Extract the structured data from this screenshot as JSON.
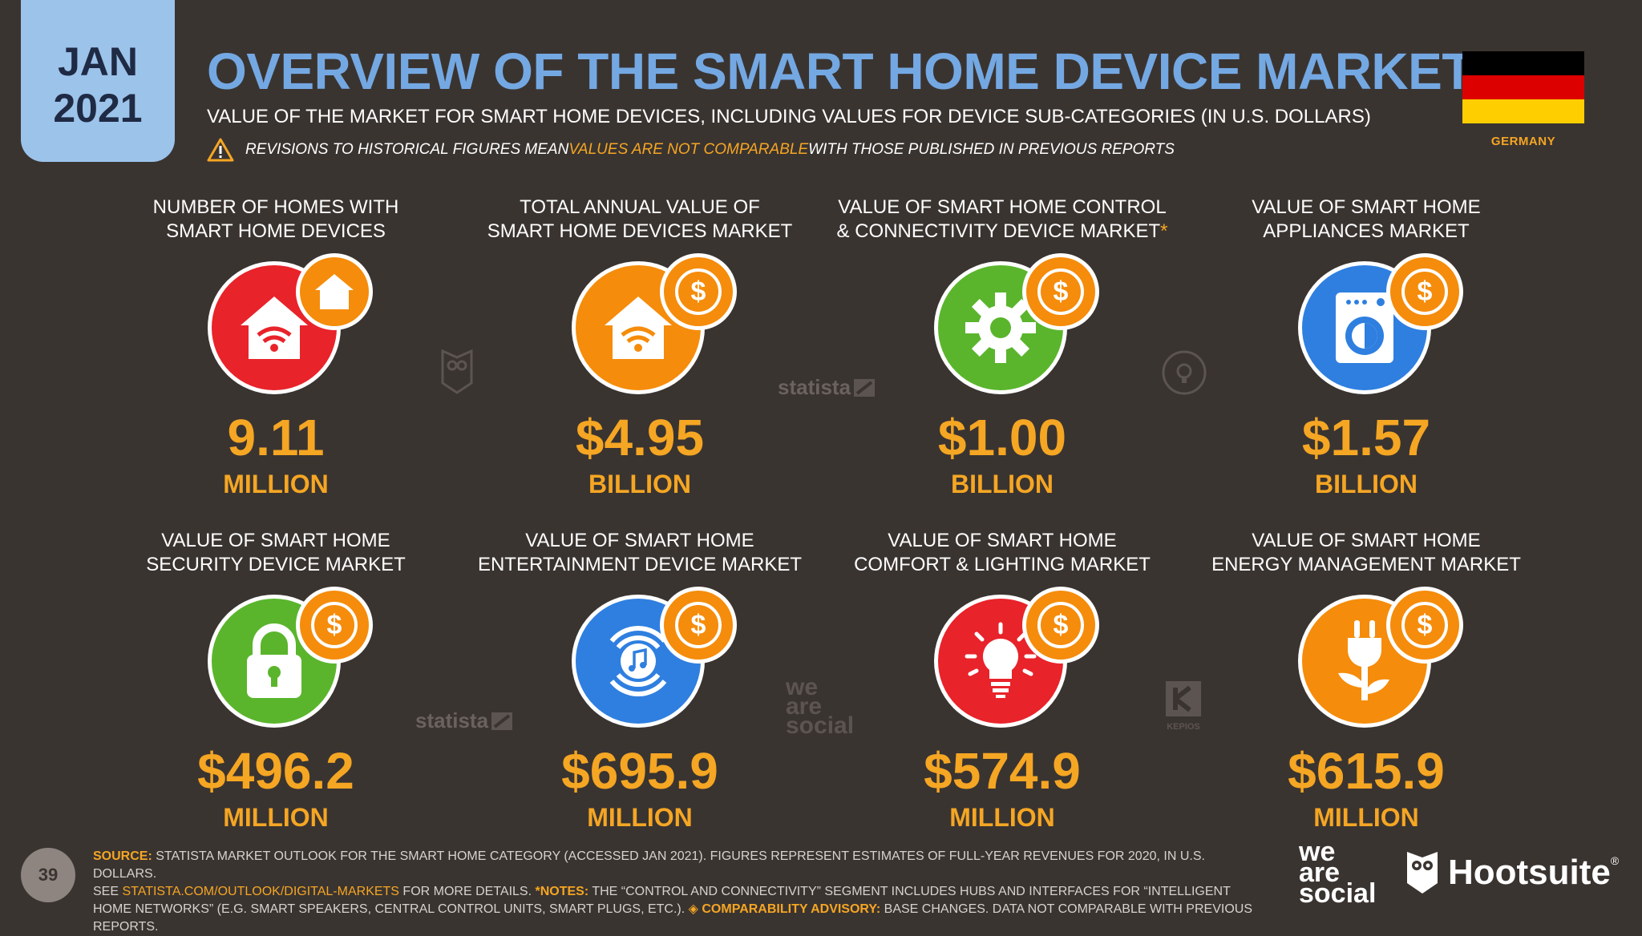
{
  "header": {
    "month": "JAN",
    "year": "2021",
    "title": "OVERVIEW OF THE SMART HOME DEVICE MARKET",
    "subtitle": "VALUE OF THE MARKET FOR SMART HOME DEVICES, INCLUDING VALUES FOR DEVICE SUB-CATEGORIES (IN U.S. DOLLARS)",
    "warning_pre": "REVISIONS TO HISTORICAL FIGURES MEAN ",
    "warning_highlight": "VALUES ARE NOT COMPARABLE",
    "warning_post": " WITH THOSE PUBLISHED IN PREVIOUS REPORTS",
    "country": "GERMANY"
  },
  "flag_colors": [
    "#000000",
    "#dd0000",
    "#ffce00"
  ],
  "cards": [
    {
      "label_line1": "NUMBER OF HOMES WITH",
      "label_line2": "SMART HOME DEVICES",
      "value": "9.11",
      "unit": "MILLION",
      "icon": "house-wifi-icon",
      "color": "#e8232a"
    },
    {
      "label_line1": "TOTAL ANNUAL VALUE OF",
      "label_line2": "SMART HOME DEVICES MARKET",
      "value": "$4.95",
      "unit": "BILLION",
      "icon": "house-wifi-icon",
      "color": "#f58c0b"
    },
    {
      "label_line1": "VALUE OF SMART HOME CONTROL",
      "label_line2": "& CONNECTIVITY DEVICE MARKET",
      "label_asterisk": "*",
      "value": "$1.00",
      "unit": "BILLION",
      "icon": "gear-icon",
      "color": "#5ab52c"
    },
    {
      "label_line1": "VALUE OF SMART HOME",
      "label_line2": "APPLIANCES MARKET",
      "value": "$1.57",
      "unit": "BILLION",
      "icon": "washing-machine-icon",
      "color": "#2f7fe0"
    },
    {
      "label_line1": "VALUE OF SMART HOME",
      "label_line2": "SECURITY DEVICE MARKET",
      "value": "$496.2",
      "unit": "MILLION",
      "icon": "padlock-icon",
      "color": "#5ab52c"
    },
    {
      "label_line1": "VALUE OF SMART HOME",
      "label_line2": "ENTERTAINMENT DEVICE MARKET",
      "value": "$695.9",
      "unit": "MILLION",
      "icon": "music-speaker-icon",
      "color": "#2f7fe0"
    },
    {
      "label_line1": "VALUE OF SMART HOME",
      "label_line2": "COMFORT & LIGHTING MARKET",
      "value": "$574.9",
      "unit": "MILLION",
      "icon": "lightbulb-icon",
      "color": "#e8232a"
    },
    {
      "label_line1": "VALUE OF SMART HOME",
      "label_line2": "ENERGY MANAGEMENT MARKET",
      "value": "$615.9",
      "unit": "MILLION",
      "icon": "plug-icon",
      "color": "#f58c0b"
    }
  ],
  "badge_symbol": "$",
  "watermarks": {
    "statista": "statista",
    "was_line1": "we",
    "was_line2": "are",
    "was_line3": "social",
    "kepios": "KEPIOS"
  },
  "footer": {
    "page_number": "39",
    "source_key": "SOURCE:",
    "source_text": " STATISTA MARKET OUTLOOK FOR THE SMART HOME CATEGORY (ACCESSED JAN 2021). FIGURES REPRESENT ESTIMATES OF FULL-YEAR REVENUES FOR 2020, IN U.S. DOLLARS.",
    "see_text": "SEE ",
    "link_text": "STATISTA.COM/OUTLOOK/DIGITAL-MARKETS",
    "more_text": " FOR MORE DETAILS. ",
    "notes_key": "*NOTES:",
    "notes_text": " THE “CONTROL AND CONNECTIVITY” SEGMENT INCLUDES HUBS AND INTERFACES FOR “INTELLIGENT HOME NETWORKS” (E.G. SMART SPEAKERS, CENTRAL CONTROL UNITS, SMART PLUGS, ETC.). ",
    "advisory_key": "◈ COMPARABILITY ADVISORY:",
    "advisory_text": " BASE CHANGES. DATA NOT COMPARABLE WITH PREVIOUS REPORTS."
  },
  "brands": {
    "was_line1": "we",
    "was_line2": "are",
    "was_line3": "social",
    "hootsuite": "Hootsuite",
    "registered": "®"
  }
}
